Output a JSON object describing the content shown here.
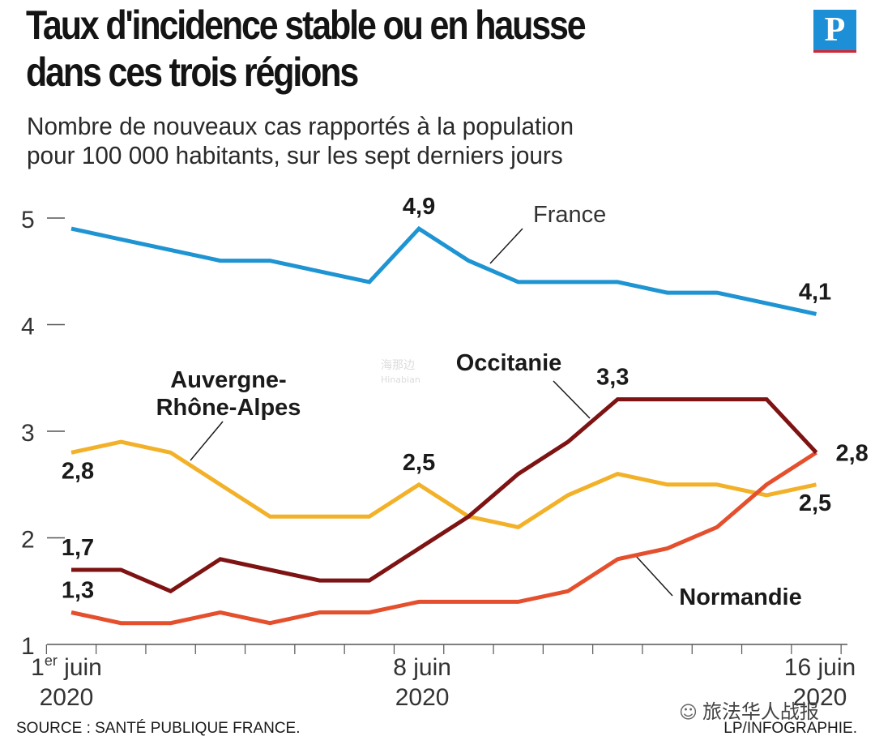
{
  "header": {
    "title_line1": "Taux d'incidence stable ou en hausse",
    "title_line2": "dans ces trois régions",
    "subtitle_line1": "Nombre de nouveaux cas rapportés à la population",
    "subtitle_line2": "pour 100 000 habitants, sur les sept derniers jours",
    "logo_letter": "P"
  },
  "chart_data": {
    "type": "line",
    "title": "Taux d'incidence stable ou en hausse dans ces trois régions",
    "subtitle": "Nombre de nouveaux cas rapportés à la population pour 100 000 habitants, sur les sept derniers jours",
    "x": [
      1,
      2,
      3,
      4,
      5,
      6,
      7,
      8,
      9,
      10,
      11,
      12,
      13,
      14,
      15,
      16
    ],
    "x_ticks": [
      {
        "day": 1,
        "line1": "1",
        "sup": "er",
        "line1b": " juin",
        "line2": "2020"
      },
      {
        "day": 8,
        "line1": "8 juin",
        "sup": "",
        "line1b": "",
        "line2": "2020"
      },
      {
        "day": 16,
        "line1": "16 juin",
        "sup": "",
        "line1b": "",
        "line2": "2020"
      }
    ],
    "ylim": [
      1,
      5.3
    ],
    "y_ticks": [
      {
        "value": 1,
        "label": "1"
      },
      {
        "value": 2,
        "label": "2"
      },
      {
        "value": 3,
        "label": "3"
      },
      {
        "value": 4,
        "label": "4"
      },
      {
        "value": 5,
        "label": "5"
      }
    ],
    "series": [
      {
        "name": "France",
        "color": "#1f94d2",
        "values": [
          4.9,
          4.8,
          4.7,
          4.6,
          4.6,
          4.5,
          4.4,
          4.9,
          4.6,
          4.4,
          4.4,
          4.4,
          4.3,
          4.3,
          4.2,
          4.1
        ]
      },
      {
        "name": "Auvergne-Rhône-Alpes",
        "color": "#f2b128",
        "values": [
          2.8,
          2.9,
          2.8,
          2.5,
          2.2,
          2.2,
          2.2,
          2.5,
          2.2,
          2.1,
          2.4,
          2.6,
          2.5,
          2.5,
          2.4,
          2.5
        ]
      },
      {
        "name": "Occitanie",
        "color": "#7e1313",
        "values": [
          1.7,
          1.7,
          1.5,
          1.8,
          1.7,
          1.6,
          1.6,
          1.9,
          2.2,
          2.6,
          2.9,
          3.3,
          3.3,
          3.3,
          3.3,
          2.8
        ]
      },
      {
        "name": "Normandie",
        "color": "#e4502e",
        "values": [
          1.3,
          1.2,
          1.2,
          1.3,
          1.2,
          1.3,
          1.3,
          1.4,
          1.4,
          1.4,
          1.5,
          1.8,
          1.9,
          2.1,
          2.5,
          2.8
        ]
      }
    ],
    "data_labels": [
      {
        "series": "France",
        "day": 8,
        "value": 4.9,
        "text": "4,9",
        "pos": "above"
      },
      {
        "series": "France",
        "day": 16,
        "value": 4.1,
        "text": "4,1",
        "pos": "above"
      },
      {
        "series": "Auvergne-Rhône-Alpes",
        "day": 1,
        "value": 2.8,
        "text": "2,8",
        "pos": "below"
      },
      {
        "series": "Auvergne-Rhône-Alpes",
        "day": 8,
        "value": 2.5,
        "text": "2,5",
        "pos": "above"
      },
      {
        "series": "Auvergne-Rhône-Alpes",
        "day": 16,
        "value": 2.5,
        "text": "2,5",
        "pos": "below"
      },
      {
        "series": "Occitanie",
        "day": 1,
        "value": 1.7,
        "text": "1,7",
        "pos": "above"
      },
      {
        "series": "Occitanie",
        "day": 12,
        "value": 3.3,
        "text": "3,3",
        "pos": "above"
      },
      {
        "series": "Occitanie",
        "day": 16,
        "value": 2.8,
        "text": "2,8",
        "pos": "right"
      },
      {
        "series": "Normandie",
        "day": 1,
        "value": 1.3,
        "text": "1,3",
        "pos": "above"
      }
    ],
    "series_labels": [
      {
        "series": "France",
        "lines": [
          "France"
        ],
        "bold": false
      },
      {
        "series": "Auvergne-Rhône-Alpes",
        "lines": [
          "Auvergne-",
          "Rhône-Alpes"
        ],
        "bold": true
      },
      {
        "series": "Occitanie",
        "lines": [
          "Occitanie"
        ],
        "bold": true
      },
      {
        "series": "Normandie",
        "lines": [
          "Normandie"
        ],
        "bold": true
      }
    ]
  },
  "footer": {
    "source": "SOURCE : SANTÉ PUBLIQUE FRANCE.",
    "credit": "LP/INFOGRAPHIE."
  },
  "watermark": {
    "text": "旅法华人战报",
    "faint_line1": "海那边",
    "faint_line2": "Hinabian"
  }
}
